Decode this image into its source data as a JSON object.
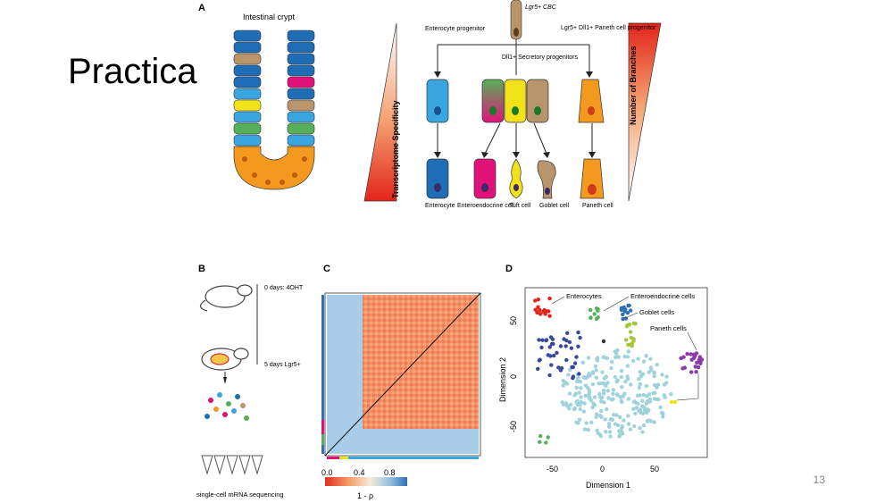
{
  "slide": {
    "title": "Practica",
    "page_number": "13"
  },
  "panel_a": {
    "label": "A",
    "crypt_title": "Intestinal crypt",
    "stem_label": "Lgr5+ CBC",
    "enterocyte_progenitor": "Enterocyte progenitor",
    "secretory_progenitors": "Dll1+ Secretory progenitors",
    "paneth_progenitor": "Lgr5+ Dll1+ Paneth cell progenitor",
    "left_triangle_label": "Transcriptome Specificity",
    "right_triangle_label": "Number of Branches",
    "cells": [
      "Enterocyte",
      "Enteroendocrine cell",
      "Tuft cell",
      "Goblet cell",
      "Paneth cell"
    ]
  },
  "panel_b": {
    "label": "B",
    "step1": "0 days: 4OHT",
    "step2": "5 days Lgr5+",
    "caption": "single-cell mRNA sequencing"
  },
  "panel_c": {
    "label": "C",
    "colorbar_ticks": [
      "0.0",
      "0.4",
      "0.8"
    ],
    "colorbar_label": "1 - ρ"
  },
  "panel_d": {
    "label": "D",
    "xlabel": "Dimension 1",
    "ylabel": "Dimension 2",
    "x_ticks": [
      "-50",
      "0",
      "50"
    ],
    "y_ticks": [
      "50",
      "0",
      "-50"
    ],
    "annotations": [
      "Enterocytes",
      "Enteroendocrine cells",
      "Goblet cells",
      "Paneth cells"
    ]
  },
  "colors": {
    "enterocyte": "#1f6db5",
    "enteroendocrine": "#e0127a",
    "tuft": "#f2e21a",
    "goblet": "#b8956a",
    "paneth": "#f39a1e",
    "progenitor_blue": "#3aa6e0",
    "cluster_main": "#9fd3dc"
  }
}
